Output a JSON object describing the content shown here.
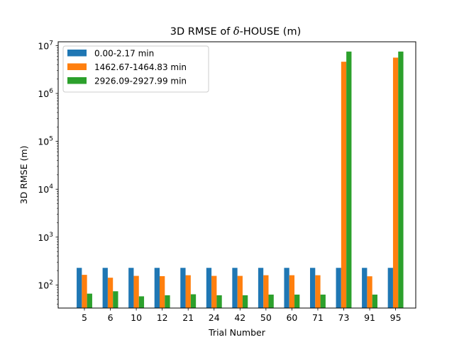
{
  "chart_data": {
    "type": "bar",
    "title_pre": "3D RMSE of ",
    "title_sym": "δ",
    "title_post": "-HOUSE (m)",
    "xlabel": "Trial Number",
    "ylabel": "3D RMSE (m)",
    "yscale": "log",
    "ylim": [
      33,
      12000000
    ],
    "ytick_base": "10",
    "ytick_exponents": [
      "2",
      "3",
      "4",
      "5",
      "6",
      "7"
    ],
    "categories": [
      "5",
      "6",
      "10",
      "12",
      "21",
      "24",
      "42",
      "50",
      "60",
      "71",
      "73",
      "91",
      "95"
    ],
    "series": [
      {
        "name": "0.00-2.17 min",
        "color": "#1f77b4",
        "values": [
          228,
          228,
          228,
          228,
          228,
          228,
          228,
          228,
          228,
          228,
          228,
          228,
          228
        ]
      },
      {
        "name": "1462.67-1464.83 min",
        "color": "#ff7f0e",
        "values": [
          163,
          142,
          155,
          153,
          160,
          155,
          155,
          160,
          160,
          160,
          4600000,
          152,
          5600000
        ]
      },
      {
        "name": "2926.09-2927.99 min",
        "color": "#2ca02c",
        "values": [
          66,
          74,
          58,
          61,
          64,
          61,
          61,
          63,
          63,
          63,
          7500000,
          63,
          7500000
        ]
      }
    ],
    "legend_position": "upper left",
    "grid": false
  }
}
